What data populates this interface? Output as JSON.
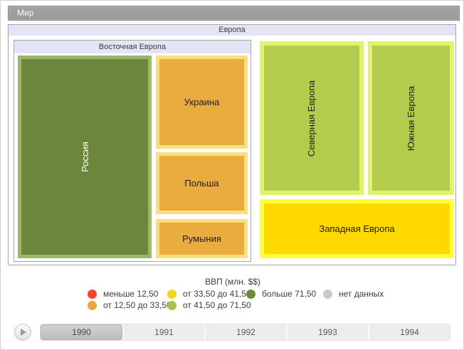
{
  "breadcrumb": {
    "label": "Мир"
  },
  "treemap": {
    "root_label": "Европа",
    "groups": {
      "eastern": {
        "label": "Восточная Европа"
      }
    },
    "nodes": {
      "russia": {
        "label": "Россия",
        "fill": "#6C873C",
        "border": "#9BB867",
        "text_color": "#FFFFFF"
      },
      "ukraine": {
        "label": "Украина",
        "fill": "#EAAC3E",
        "border": "#FCDF7D",
        "text_color": "#1E1E1E"
      },
      "poland": {
        "label": "Польша",
        "fill": "#EAAC3E",
        "border": "#FCDF7D",
        "text_color": "#1E1E1E"
      },
      "romania": {
        "label": "Румыния",
        "fill": "#EAAC3E",
        "border": "#FCDF7D",
        "text_color": "#1E1E1E"
      },
      "northern": {
        "label": "Северная Европа",
        "fill": "#B3CC4E",
        "border": "#DFF468",
        "text_color": "#1E1E1E"
      },
      "southern": {
        "label": "Южная Европа",
        "fill": "#B3CC4E",
        "border": "#DFF468",
        "text_color": "#1E1E1E"
      },
      "western": {
        "label": "Западная Европа",
        "fill": "#FFD800",
        "border": "#FFFF3C",
        "text_color": "#1E1E1E"
      }
    }
  },
  "legend": {
    "title": "ВВП (млн. $$)",
    "items": [
      {
        "label": "меньше 12,50",
        "color": "#F4462E"
      },
      {
        "label": "от 12,50 до 33,50",
        "color": "#E7A83E"
      },
      {
        "label": "от 33,50 до 41,50",
        "color": "#F2D51F"
      },
      {
        "label": "от 41,50 до 71,50",
        "color": "#A6C44A"
      },
      {
        "label": "больше 71,50",
        "color": "#6C8A3B"
      },
      {
        "label": "нет данных",
        "color": "#C9C9C9"
      }
    ]
  },
  "timeline": {
    "years": [
      {
        "label": "1990",
        "selected": true
      },
      {
        "label": "1991",
        "selected": false
      },
      {
        "label": "1992",
        "selected": false
      },
      {
        "label": "1993",
        "selected": false
      },
      {
        "label": "1994",
        "selected": false
      }
    ]
  },
  "chart_data": {
    "type": "treemap",
    "title": "Европа",
    "root": "Мир",
    "value_label": "ВВП (млн. $$)",
    "year_shown": "1990",
    "groups": [
      {
        "name": "Восточная Европа",
        "children": [
          {
            "name": "Россия",
            "value_bin": "больше 71,50"
          },
          {
            "name": "Украина",
            "value_bin": "от 12,50 до 33,50"
          },
          {
            "name": "Польша",
            "value_bin": "от 12,50 до 33,50"
          },
          {
            "name": "Румыния",
            "value_bin": "от 12,50 до 33,50"
          }
        ]
      },
      {
        "name": "Северная Европа",
        "value_bin": "от 41,50 до 71,50"
      },
      {
        "name": "Южная Европа",
        "value_bin": "от 41,50 до 71,50"
      },
      {
        "name": "Западная Европа",
        "value_bin": "от 33,50 до 41,50"
      }
    ],
    "legend_bins": [
      {
        "label": "меньше 12,50",
        "color": "#F4462E"
      },
      {
        "label": "от 12,50 до 33,50",
        "color": "#E7A83E"
      },
      {
        "label": "от 33,50 до 41,50",
        "color": "#F2D51F"
      },
      {
        "label": "от 41,50 до 71,50",
        "color": "#A6C44A"
      },
      {
        "label": "больше 71,50",
        "color": "#6C8A3B"
      },
      {
        "label": "нет данных",
        "color": "#C9C9C9"
      }
    ]
  }
}
